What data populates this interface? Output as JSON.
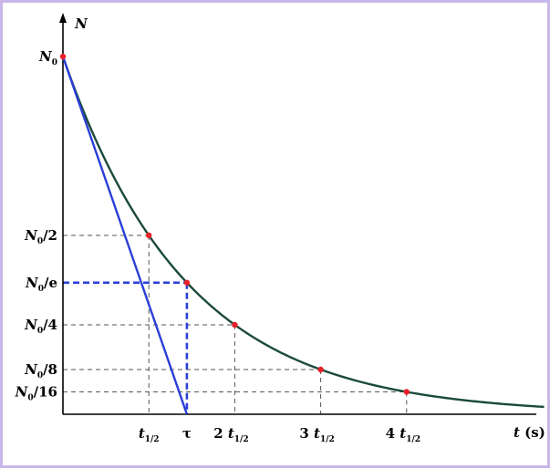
{
  "chart_data": {
    "type": "line",
    "title": "",
    "xlabel": {
      "var": "t",
      "unit": " (s)"
    },
    "ylabel": "N",
    "half_life": 1,
    "tau": 1.4427,
    "xlim": [
      0,
      5.6
    ],
    "ylim": [
      0,
      1.0
    ],
    "curve": {
      "name": "",
      "color": "#1a4a3a",
      "function": "N = N0 * 2^(-t / t_half)"
    },
    "marked_points": [
      {
        "x": 0,
        "y": 1
      },
      {
        "x": 1,
        "y": 0.5
      },
      {
        "x": 1.4427,
        "y": 0.36788
      },
      {
        "x": 2,
        "y": 0.25
      },
      {
        "x": 3,
        "y": 0.125
      },
      {
        "x": 4,
        "y": 0.0625
      }
    ],
    "tangent_line": {
      "color": "#2a3fd6",
      "from": {
        "x": 0,
        "y": 1
      },
      "to": {
        "x": 1.4427,
        "y": 0
      }
    },
    "tau_guides_color": "#2a3fd6",
    "guide_color": "#555555",
    "point_color": "#e8202a",
    "y_ticks": [
      {
        "y": 1,
        "main": "N",
        "sub": "0",
        "rest": "",
        "style": "none"
      },
      {
        "y": 0.5,
        "main": "N",
        "sub": "0",
        "rest": "/2",
        "style": "gray"
      },
      {
        "y": 0.36788,
        "main": "N",
        "sub": "0",
        "rest": "/e",
        "style": "blue"
      },
      {
        "y": 0.25,
        "main": "N",
        "sub": "0",
        "rest": "/4",
        "style": "gray"
      },
      {
        "y": 0.125,
        "main": "N",
        "sub": "0",
        "rest": "/8",
        "style": "gray"
      },
      {
        "y": 0.0625,
        "main": "N",
        "sub": "0",
        "rest": "/16",
        "style": "gray"
      }
    ],
    "x_ticks": [
      {
        "x": 1,
        "coef": "",
        "main": "t",
        "sub": "1/2",
        "style": "gray"
      },
      {
        "x": 1.4427,
        "coef": "",
        "main": "τ",
        "sub": "",
        "style": "blue"
      },
      {
        "x": 2,
        "coef": "2",
        "main": "t",
        "sub": "1/2",
        "style": "gray"
      },
      {
        "x": 3,
        "coef": "3",
        "main": "t",
        "sub": "1/2",
        "style": "gray"
      },
      {
        "x": 4,
        "coef": "4",
        "main": "t",
        "sub": "1/2",
        "style": "gray"
      }
    ]
  }
}
